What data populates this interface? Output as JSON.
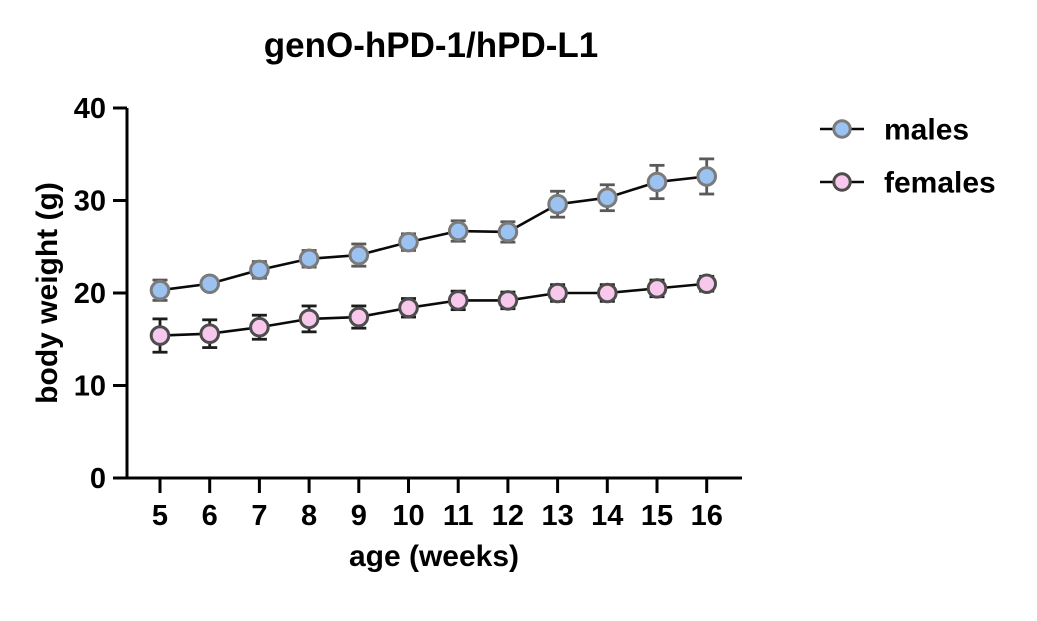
{
  "figure": {
    "background": "#ffffff"
  },
  "chart_data": {
    "type": "line",
    "title": "genO-hPD-1/hPD-L1",
    "xlabel": "age (weeks)",
    "ylabel": "body weight (g)",
    "x": [
      5,
      6,
      7,
      8,
      9,
      10,
      11,
      12,
      13,
      14,
      15,
      16
    ],
    "ylim": [
      0,
      40
    ],
    "yticks": [
      0,
      10,
      20,
      30,
      40
    ],
    "grid": false,
    "legend_position": "right-top",
    "line_color": "#0a0a0a",
    "axis_color": "#000000",
    "series": [
      {
        "name": "males",
        "marker": "circle",
        "fill": "#9BC2F0",
        "stroke": "#7b7b7b",
        "error_color": "#5a5a5a",
        "values": [
          20.3,
          21.0,
          22.5,
          23.7,
          24.1,
          25.5,
          26.7,
          26.6,
          29.6,
          30.3,
          32.0,
          32.6
        ],
        "errors": [
          1.1,
          0.6,
          0.9,
          0.9,
          1.2,
          0.9,
          1.1,
          1.1,
          1.4,
          1.4,
          1.8,
          1.9
        ]
      },
      {
        "name": "females",
        "marker": "circle",
        "fill": "#F8C8EC",
        "stroke": "#4d4d4d",
        "error_color": "#1c1c1c",
        "values": [
          15.4,
          15.6,
          16.3,
          17.2,
          17.4,
          18.4,
          19.2,
          19.2,
          20.0,
          20.0,
          20.5,
          21.0
        ],
        "errors": [
          1.8,
          1.5,
          1.3,
          1.4,
          1.2,
          1.0,
          1.0,
          0.9,
          0.9,
          0.9,
          0.9,
          0.8
        ]
      }
    ]
  }
}
